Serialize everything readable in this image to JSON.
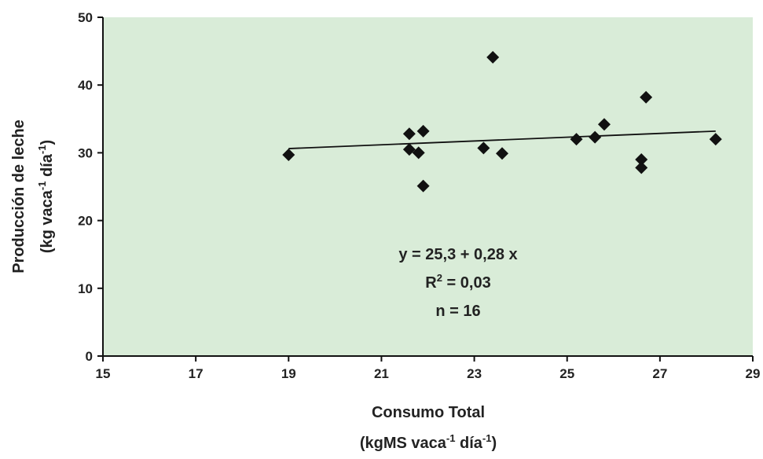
{
  "colors": {
    "plot_background": "#d9ecd8",
    "axis": "#111111",
    "marker": "#111111",
    "trendline": "#111111",
    "text": "#222222"
  },
  "chart_data": {
    "type": "scatter",
    "xlabel_line1": "Consumo Total",
    "xlabel_line2_parts": [
      "(kgMS vaca",
      "-1",
      " día",
      "-1",
      ")"
    ],
    "ylabel_line1": "Producción de leche",
    "ylabel_line2_parts": [
      "(kg vaca",
      "-1",
      " día",
      "-1",
      ")"
    ],
    "xlim": [
      15,
      29
    ],
    "ylim": [
      0,
      50
    ],
    "x_ticks": [
      "15",
      "17",
      "19",
      "21",
      "23",
      "25",
      "27",
      "29"
    ],
    "y_ticks": [
      "0",
      "10",
      "20",
      "30",
      "40",
      "50"
    ],
    "grid": false,
    "legend": "none",
    "points": [
      {
        "x": 19.0,
        "y": 29.7
      },
      {
        "x": 21.6,
        "y": 32.8
      },
      {
        "x": 21.6,
        "y": 30.5
      },
      {
        "x": 21.8,
        "y": 30.0
      },
      {
        "x": 21.9,
        "y": 33.2
      },
      {
        "x": 21.9,
        "y": 25.1
      },
      {
        "x": 23.2,
        "y": 30.7
      },
      {
        "x": 23.4,
        "y": 44.1
      },
      {
        "x": 23.6,
        "y": 29.9
      },
      {
        "x": 25.2,
        "y": 32.0
      },
      {
        "x": 25.6,
        "y": 32.3
      },
      {
        "x": 25.8,
        "y": 34.2
      },
      {
        "x": 26.6,
        "y": 29.0
      },
      {
        "x": 26.6,
        "y": 27.8
      },
      {
        "x": 26.7,
        "y": 38.2
      },
      {
        "x": 28.2,
        "y": 32.0
      }
    ],
    "trendline": {
      "intercept": 25.3,
      "slope": 0.28,
      "x_start": 19.0,
      "x_end": 28.2
    },
    "annotation": {
      "equation": "y = 25,3 + 0,28 x",
      "r2_prefix": "R",
      "r2_exp": "2",
      "r2_value": " = 0,03",
      "n": "n = 16"
    }
  }
}
